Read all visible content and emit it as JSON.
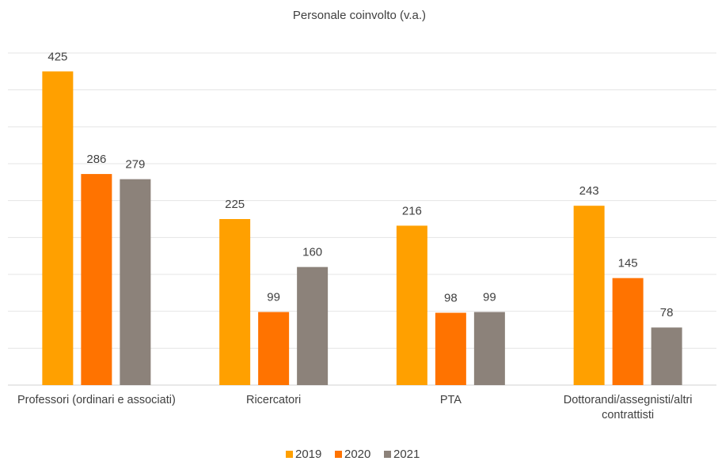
{
  "chart_data": {
    "type": "bar",
    "title": "Personale coinvolto (v.a.)",
    "categories": [
      "Professori (ordinari e associati)",
      "Ricercatori",
      "PTA",
      "Dottorandi/assegnisti/altri contrattisti"
    ],
    "series": [
      {
        "name": "2019",
        "color": "#ffa000",
        "values": [
          425,
          225,
          216,
          243
        ]
      },
      {
        "name": "2020",
        "color": "#ff7300",
        "values": [
          286,
          99,
          98,
          145
        ]
      },
      {
        "name": "2021",
        "color": "#8c827a",
        "values": [
          279,
          160,
          99,
          78
        ]
      }
    ],
    "ylim": [
      0,
      450
    ],
    "yticks": [
      0,
      50,
      100,
      150,
      200,
      250,
      300,
      350,
      400,
      450
    ],
    "grid": true,
    "legend": "bottom"
  }
}
